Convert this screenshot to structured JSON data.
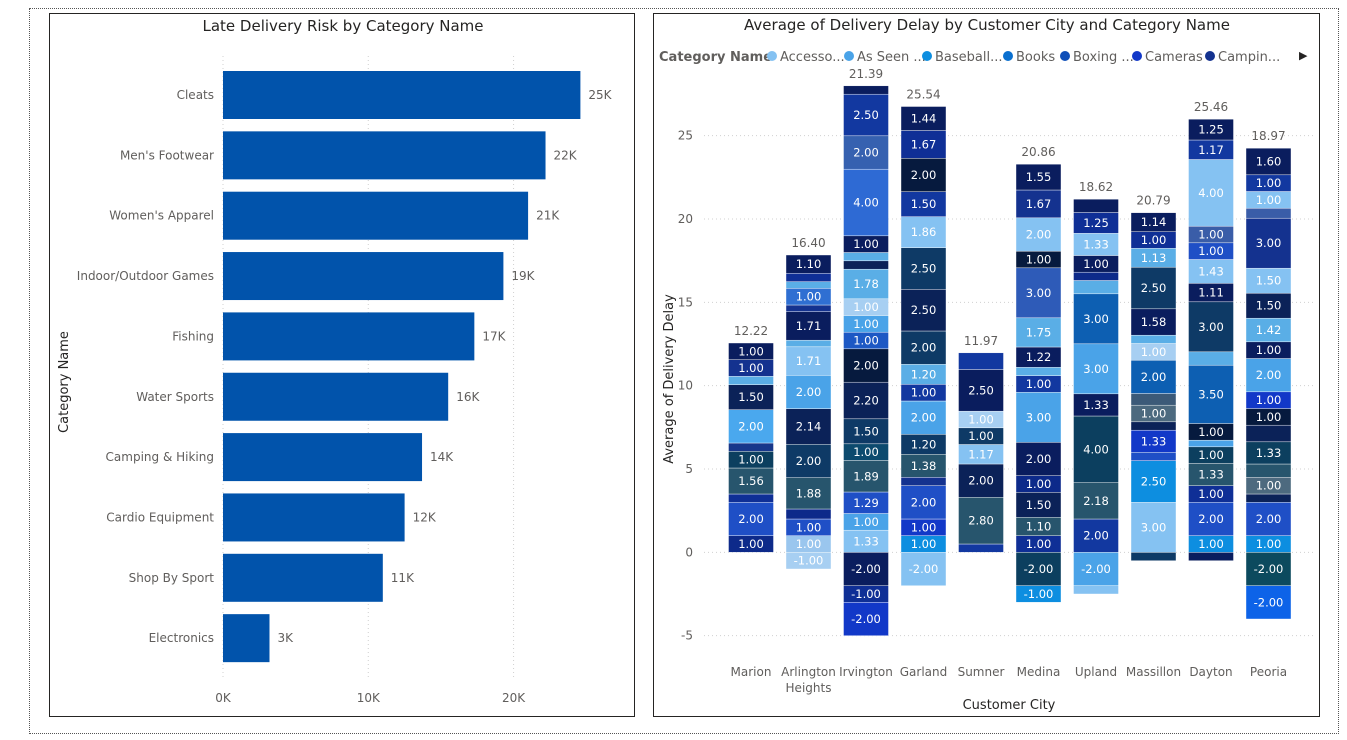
{
  "chart_data": [
    {
      "type": "bar",
      "orientation": "horizontal",
      "title": "Late Delivery Risk by Category Name",
      "ylabel": "Category Name",
      "xlabel": "",
      "xlim": [
        0,
        26500
      ],
      "xticks": [
        {
          "value": 0,
          "label": "0K"
        },
        {
          "value": 10000,
          "label": "10K"
        },
        {
          "value": 20000,
          "label": "20K"
        }
      ],
      "grid": true,
      "bar_color": "#0153ab",
      "categories": [
        "Cleats",
        "Men's Footwear",
        "Women's Apparel",
        "Indoor/Outdoor Games",
        "Fishing",
        "Water Sports",
        "Camping & Hiking",
        "Cardio Equipment",
        "Shop By Sport",
        "Electronics"
      ],
      "values": [
        24600,
        22200,
        21000,
        19300,
        17300,
        15500,
        13700,
        12500,
        11000,
        3200
      ],
      "data_labels": [
        "25K",
        "22K",
        "21K",
        "19K",
        "17K",
        "16K",
        "14K",
        "12K",
        "11K",
        "3K"
      ]
    },
    {
      "type": "bar",
      "stacked": true,
      "title": "Average of Delivery Delay by Customer City and Category Name",
      "xlabel": "Customer City",
      "ylabel": "Average of Delivery Delay",
      "ylim": [
        -6.1,
        27.5
      ],
      "yticks": [
        -5,
        0,
        5,
        10,
        15,
        20,
        25
      ],
      "grid": true,
      "legend": {
        "title": "Category Name",
        "position": "top",
        "items": [
          {
            "label": "Accesso...",
            "color": "#85c2f2"
          },
          {
            "label": "As Seen ...",
            "color": "#4aa3e8"
          },
          {
            "label": "Baseball...",
            "color": "#0d8ee0"
          },
          {
            "label": "Books",
            "color": "#0a6fcf"
          },
          {
            "label": "Boxing ...",
            "color": "#0f4fb8"
          },
          {
            "label": "Cameras",
            "color": "#1238c8"
          },
          {
            "label": "Campin...",
            "color": "#14328f"
          }
        ],
        "more_arrow": "▶"
      },
      "categories": [
        "Marion",
        "Arlington Heights",
        "Irvington",
        "Garland",
        "Sumner",
        "Medina",
        "Upland",
        "Massillon",
        "Dayton",
        "Peoria"
      ],
      "totals": [
        "12.22",
        "16.40",
        "21.39",
        "25.54",
        "11.97",
        "20.86",
        "18.62",
        "20.79",
        "25.46",
        "18.97"
      ],
      "stacks": [
        [
          {
            "v": 1.0,
            "c": "#0d2a8a",
            "label": "1.00"
          },
          {
            "v": 2.0,
            "c": "#1f4fc6",
            "label": "2.00"
          },
          {
            "v": 0.5,
            "c": "#0f2f96"
          },
          {
            "v": 1.56,
            "c": "#27556d",
            "label": "1.56"
          },
          {
            "v": 1.0,
            "c": "#0c3f5f",
            "label": "1.00"
          },
          {
            "v": 0.5,
            "c": "#17378a"
          },
          {
            "v": 2.0,
            "c": "#4aa8ee",
            "label": "2.00"
          },
          {
            "v": 1.5,
            "c": "#0b2258",
            "label": "1.50"
          },
          {
            "v": 0.5,
            "c": "#5aaee6"
          },
          {
            "v": 1.0,
            "c": "#14328f",
            "label": "1.00"
          },
          {
            "v": 1.0,
            "c": "#0a1d5e",
            "label": "1.00"
          }
        ],
        [
          {
            "v": -1.0,
            "c": "#a7cff2",
            "label": "-1.00"
          },
          {
            "v": 1.0,
            "c": "#9ac6ee",
            "label": "1.00"
          },
          {
            "v": 1.0,
            "c": "#1f4fc6",
            "label": "1.00"
          },
          {
            "v": 0.6,
            "c": "#0d2a8a"
          },
          {
            "v": 1.88,
            "c": "#27556d",
            "label": "1.88"
          },
          {
            "v": 2.0,
            "c": "#0e3a66",
            "label": "2.00"
          },
          {
            "v": 2.14,
            "c": "#0b2258",
            "label": "2.14"
          },
          {
            "v": 2.0,
            "c": "#4aa3e8",
            "label": "2.00"
          },
          {
            "v": 1.71,
            "c": "#85c2f2",
            "label": "1.71"
          },
          {
            "v": 0.4,
            "c": "#5aaee6"
          },
          {
            "v": 1.71,
            "c": "#0a1d5e",
            "label": "1.71"
          },
          {
            "v": 0.4,
            "c": "#14328f"
          },
          {
            "v": 1.0,
            "c": "#2f6fd2",
            "label": "1.00"
          },
          {
            "v": 0.4,
            "c": "#5aaee6"
          },
          {
            "v": 0.5,
            "c": "#0f2f96"
          },
          {
            "v": 1.1,
            "c": "#0a1d5e",
            "label": "1.10"
          }
        ],
        [
          {
            "v": -2.0,
            "c": "#0a1d5e",
            "label": "-2.00"
          },
          {
            "v": -1.0,
            "c": "#0f2f96",
            "label": "-1.00"
          },
          {
            "v": -2.0,
            "c": "#1238c8",
            "label": "-2.00"
          },
          {
            "v": 1.33,
            "c": "#85c2f2",
            "label": "1.33"
          },
          {
            "v": 1.0,
            "c": "#4aa3e8",
            "label": "1.00"
          },
          {
            "v": 1.29,
            "c": "#1f4fc6",
            "label": "1.29"
          },
          {
            "v": 1.89,
            "c": "#27556d",
            "label": "1.89"
          },
          {
            "v": 1.0,
            "c": "#0c4a6e",
            "label": "1.00"
          },
          {
            "v": 1.5,
            "c": "#0e3a66",
            "label": "1.50"
          },
          {
            "v": 2.2,
            "c": "#0b2258",
            "label": "2.20"
          },
          {
            "v": 2.0,
            "c": "#061a3e",
            "label": "2.00"
          },
          {
            "v": 1.0,
            "c": "#1d58c4",
            "label": "1.00"
          },
          {
            "v": 1.0,
            "c": "#4aa3e8",
            "label": "1.00"
          },
          {
            "v": 1.0,
            "c": "#a7cff2",
            "label": "1.00"
          },
          {
            "v": 1.78,
            "c": "#5aaee6",
            "label": "1.78"
          },
          {
            "v": 0.5,
            "c": "#0b2258"
          },
          {
            "v": 0.5,
            "c": "#5aaee6"
          },
          {
            "v": 1.0,
            "c": "#0a1d5e",
            "label": "1.00"
          },
          {
            "v": 4.0,
            "c": "#2e6ad4",
            "label": "4.00"
          },
          {
            "v": 2.0,
            "c": "#3661b0",
            "label": "2.00"
          },
          {
            "v": 2.5,
            "c": "#1238a0",
            "label": "2.50"
          },
          {
            "v": 0.5,
            "c": "#0a1d5e"
          }
        ],
        [
          {
            "v": -2.0,
            "c": "#85c2f2",
            "label": "-2.00"
          },
          {
            "v": 1.0,
            "c": "#0d8ee0",
            "label": "1.00"
          },
          {
            "v": 1.0,
            "c": "#1238c8",
            "label": "1.00"
          },
          {
            "v": 2.0,
            "c": "#1f4fc6",
            "label": "2.00"
          },
          {
            "v": 0.5,
            "c": "#14328f"
          },
          {
            "v": 1.38,
            "c": "#27556d",
            "label": "1.38"
          },
          {
            "v": 1.2,
            "c": "#0e3a66",
            "label": "1.20"
          },
          {
            "v": 2.0,
            "c": "#4aa3e8",
            "label": "2.00"
          },
          {
            "v": 1.0,
            "c": "#1238a0",
            "label": "1.00"
          },
          {
            "v": 1.2,
            "c": "#5aaee6",
            "label": "1.20"
          },
          {
            "v": 2.0,
            "c": "#0e3a66",
            "label": "2.00"
          },
          {
            "v": 2.5,
            "c": "#0b2258",
            "label": "2.50"
          },
          {
            "v": 2.5,
            "c": "#0e3a66",
            "label": "2.50"
          },
          {
            "v": 1.86,
            "c": "#85c2f2",
            "label": "1.86"
          },
          {
            "v": 1.5,
            "c": "#1238a0",
            "label": "1.50"
          },
          {
            "v": 2.0,
            "c": "#061a3e",
            "label": "2.00"
          },
          {
            "v": 1.67,
            "c": "#0f2f96",
            "label": "1.67"
          },
          {
            "v": 1.44,
            "c": "#0a1d5e",
            "label": "1.44"
          }
        ],
        [
          {
            "v": 0.5,
            "c": "#1238a0"
          },
          {
            "v": 2.8,
            "c": "#27556d",
            "label": "2.80"
          },
          {
            "v": 2.0,
            "c": "#0b2258",
            "label": "2.00"
          },
          {
            "v": 1.17,
            "c": "#85c2f2",
            "label": "1.17"
          },
          {
            "v": 1.0,
            "c": "#0e3a66",
            "label": "1.00"
          },
          {
            "v": 1.0,
            "c": "#a7cff2",
            "label": "1.00"
          },
          {
            "v": 2.5,
            "c": "#0a1d5e",
            "label": "2.50"
          },
          {
            "v": 1.0,
            "c": "#1238a0"
          }
        ],
        [
          {
            "v": -2.0,
            "c": "#0c3f5f",
            "label": "-2.00"
          },
          {
            "v": -1.0,
            "c": "#0d8ee0",
            "label": "-1.00"
          },
          {
            "v": 1.0,
            "c": "#0f2f96",
            "label": "1.00"
          },
          {
            "v": 1.1,
            "c": "#27556d",
            "label": "1.10"
          },
          {
            "v": 1.5,
            "c": "#0b2258",
            "label": "1.50"
          },
          {
            "v": 1.0,
            "c": "#0d2a8a",
            "label": "1.00"
          },
          {
            "v": 2.0,
            "c": "#0a1d5e",
            "label": "2.00"
          },
          {
            "v": 3.0,
            "c": "#4aa3e8",
            "label": "3.00"
          },
          {
            "v": 1.0,
            "c": "#1238a0",
            "label": "1.00"
          },
          {
            "v": 0.5,
            "c": "#5aaee6"
          },
          {
            "v": 1.22,
            "c": "#0a1d5e",
            "label": "1.22"
          },
          {
            "v": 1.75,
            "c": "#5aaee6",
            "label": "1.75"
          },
          {
            "v": 3.0,
            "c": "#2e5bb8",
            "label": "3.00"
          },
          {
            "v": 1.0,
            "c": "#061a3e",
            "label": "1.00"
          },
          {
            "v": 2.0,
            "c": "#85c2f2",
            "label": "2.00"
          },
          {
            "v": 1.67,
            "c": "#14328f",
            "label": "1.67"
          },
          {
            "v": 1.55,
            "c": "#0a1d5e",
            "label": "1.55"
          }
        ],
        [
          {
            "v": -2.0,
            "c": "#4aa3e8",
            "label": "-2.00"
          },
          {
            "v": -0.5,
            "c": "#85c2f2"
          },
          {
            "v": 2.0,
            "c": "#1238a0",
            "label": "2.00"
          },
          {
            "v": 2.18,
            "c": "#27556d",
            "label": "2.18"
          },
          {
            "v": 4.0,
            "c": "#0c3f5f",
            "label": "4.00"
          },
          {
            "v": 1.33,
            "c": "#0a1d5e",
            "label": "1.33"
          },
          {
            "v": 3.0,
            "c": "#4aa3e8",
            "label": "3.00"
          },
          {
            "v": 3.0,
            "c": "#0d5fb2",
            "label": "3.00"
          },
          {
            "v": 0.8,
            "c": "#5aaee6"
          },
          {
            "v": 0.5,
            "c": "#0d2a8a"
          },
          {
            "v": 1.0,
            "c": "#0a1d5e",
            "label": "1.00"
          },
          {
            "v": 1.33,
            "c": "#85c2f2",
            "label": "1.33"
          },
          {
            "v": 1.25,
            "c": "#0f2f96",
            "label": "1.25"
          },
          {
            "v": 0.8,
            "c": "#0a1d5e"
          }
        ],
        [
          {
            "v": -0.5,
            "c": "#0e3a66"
          },
          {
            "v": 3.0,
            "c": "#85c2f2",
            "label": "3.00"
          },
          {
            "v": 2.5,
            "c": "#0d8ee0",
            "label": "2.50"
          },
          {
            "v": 0.5,
            "c": "#1f4fc6"
          },
          {
            "v": 1.33,
            "c": "#1238c8",
            "label": "1.33"
          },
          {
            "v": 0.5,
            "c": "#0b2258"
          },
          {
            "v": 1.0,
            "c": "#4d6a7f",
            "label": "1.00"
          },
          {
            "v": 0.7,
            "c": "#3c5a78"
          },
          {
            "v": 2.0,
            "c": "#0d5fb2",
            "label": "2.00"
          },
          {
            "v": 1.0,
            "c": "#a7cff2",
            "label": "1.00"
          },
          {
            "v": 0.5,
            "c": "#5aaee6"
          },
          {
            "v": 1.58,
            "c": "#0a1d5e",
            "label": "1.58"
          },
          {
            "v": 2.5,
            "c": "#0e3a66",
            "label": "2.50"
          },
          {
            "v": 1.13,
            "c": "#5aaee6",
            "label": "1.13"
          },
          {
            "v": 1.0,
            "c": "#0f2f96",
            "label": "1.00"
          },
          {
            "v": 1.14,
            "c": "#0a1d5e",
            "label": "1.14"
          }
        ],
        [
          {
            "v": -0.5,
            "c": "#0a1d5e"
          },
          {
            "v": 1.0,
            "c": "#0d8ee0",
            "label": "1.00"
          },
          {
            "v": 2.0,
            "c": "#1f4fc6",
            "label": "2.00"
          },
          {
            "v": 1.0,
            "c": "#0f2f96",
            "label": "1.00"
          },
          {
            "v": 1.33,
            "c": "#27556d",
            "label": "1.33"
          },
          {
            "v": 1.0,
            "c": "#0c3f5f",
            "label": "1.00"
          },
          {
            "v": 0.4,
            "c": "#4aa3e8"
          },
          {
            "v": 1.0,
            "c": "#061a3e",
            "label": "1.00"
          },
          {
            "v": 3.5,
            "c": "#0d5fb2",
            "label": "3.50"
          },
          {
            "v": 0.8,
            "c": "#5aaee6"
          },
          {
            "v": 3.0,
            "c": "#0e3a66",
            "label": "3.00"
          },
          {
            "v": 1.11,
            "c": "#0a1d5e",
            "label": "1.11"
          },
          {
            "v": 1.43,
            "c": "#85c2f2",
            "label": "1.43"
          },
          {
            "v": 1.0,
            "c": "#1f4fc6",
            "label": "1.00"
          },
          {
            "v": 1.0,
            "c": "#3a5da8",
            "label": "1.00"
          },
          {
            "v": 4.0,
            "c": "#85c2f2",
            "label": "4.00"
          },
          {
            "v": 1.17,
            "c": "#1238a0",
            "label": "1.17"
          },
          {
            "v": 1.25,
            "c": "#0a1d5e",
            "label": "1.25"
          }
        ],
        [
          {
            "v": -2.0,
            "c": "#0c4a5e",
            "label": "-2.00"
          },
          {
            "v": -2.0,
            "c": "#0d63e8",
            "label": "-2.00"
          },
          {
            "v": 1.0,
            "c": "#0d8ee0",
            "label": "1.00"
          },
          {
            "v": 2.0,
            "c": "#1f4fc6",
            "label": "2.00"
          },
          {
            "v": 0.5,
            "c": "#0b2258"
          },
          {
            "v": 1.0,
            "c": "#4d6a7f",
            "label": "1.00"
          },
          {
            "v": 0.8,
            "c": "#27556d"
          },
          {
            "v": 1.33,
            "c": "#0c3f5f",
            "label": "1.33"
          },
          {
            "v": 1.0,
            "c": "#0b2258"
          },
          {
            "v": 1.0,
            "c": "#061a3e",
            "label": "1.00"
          },
          {
            "v": 1.0,
            "c": "#1238c8",
            "label": "1.00"
          },
          {
            "v": 2.0,
            "c": "#4aa3e8",
            "label": "2.00"
          },
          {
            "v": 1.0,
            "c": "#0a1d5e",
            "label": "1.00"
          },
          {
            "v": 1.42,
            "c": "#5aaee6",
            "label": "1.42"
          },
          {
            "v": 1.5,
            "c": "#0b2258",
            "label": "1.50"
          },
          {
            "v": 1.5,
            "c": "#85c2f2",
            "label": "1.50"
          },
          {
            "v": 3.0,
            "c": "#14328f",
            "label": "3.00"
          },
          {
            "v": 0.6,
            "c": "#3a5da8"
          },
          {
            "v": 1.0,
            "c": "#85c2f2",
            "label": "1.00"
          },
          {
            "v": 1.0,
            "c": "#1238a0",
            "label": "1.00"
          },
          {
            "v": 1.6,
            "c": "#0a1d5e",
            "label": "1.60"
          }
        ]
      ]
    }
  ]
}
